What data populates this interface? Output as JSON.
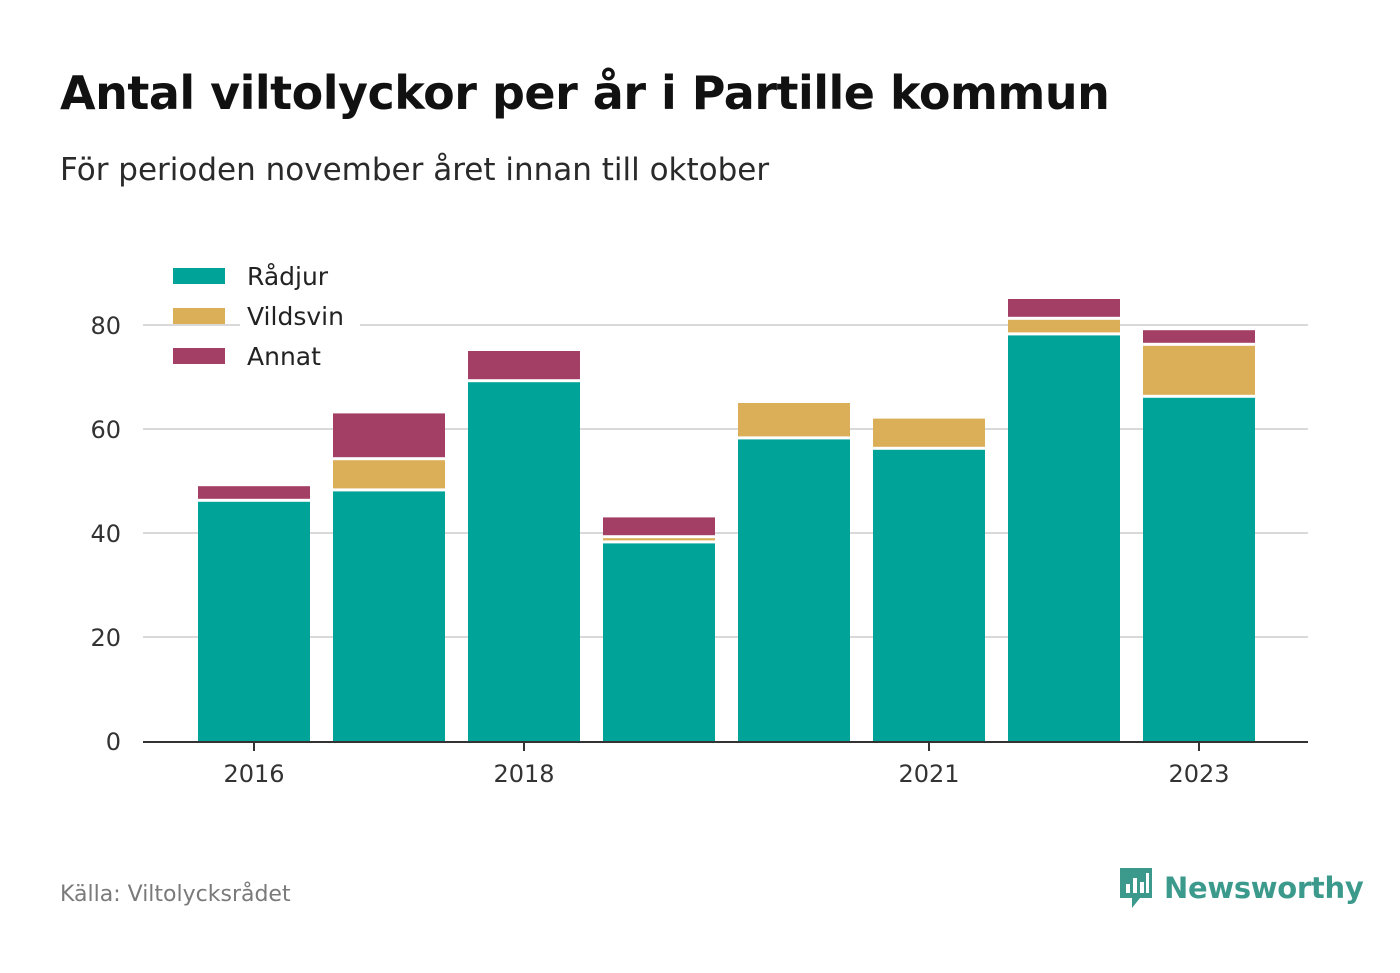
{
  "header": {
    "title": "Antal viltolyckor per år i Partille kommun",
    "subtitle": "För perioden november året innan till oktober"
  },
  "footer": {
    "source": "Källa: Viltolycksrådet",
    "brand": "Newsworthy",
    "brand_icon": "newsworthy-logo-icon",
    "brand_color": "#3c9a8d"
  },
  "chart_data": {
    "type": "bar",
    "stacked": true,
    "categories": [
      "2016",
      "2017",
      "2018",
      "2019",
      "2020",
      "2021",
      "2022",
      "2023"
    ],
    "x_tick_labels": [
      "2016",
      "",
      "2018",
      "",
      "",
      "2021",
      "",
      "2023"
    ],
    "series": [
      {
        "name": "Rådjur",
        "color": "#00a398",
        "values": [
          46,
          48,
          69,
          38,
          58,
          56,
          78,
          66
        ]
      },
      {
        "name": "Vildsvin",
        "color": "#dbae58",
        "values": [
          0,
          6,
          0,
          1,
          7,
          6,
          3,
          10
        ]
      },
      {
        "name": "Annat",
        "color": "#a33f64",
        "values": [
          3,
          9,
          6,
          4,
          0,
          0,
          4,
          3
        ]
      }
    ],
    "ylim": [
      0,
      90
    ],
    "yticks": [
      0,
      20,
      40,
      60,
      80
    ],
    "grid": true,
    "legend_position": "top-left"
  }
}
